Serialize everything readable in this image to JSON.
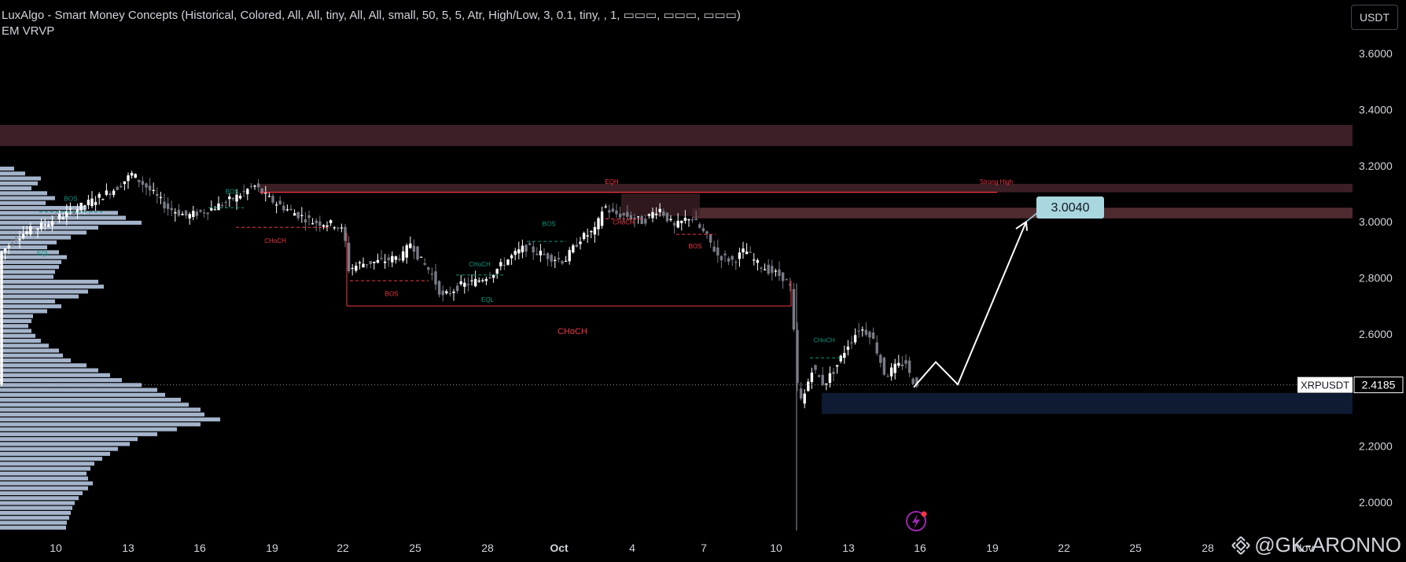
{
  "header": {
    "indicator_line1": "LuxAlgo - Smart Money Concepts (Historical, Colored, All, All, tiny, All, All, small, 50, 5, 5, Atr, High/Low, 3, 0.1, tiny, , 1, ▭▭▭, ▭▭▭, ▭▭▭)",
    "indicator_line2": "EM VRVP",
    "currency_button": "USDT"
  },
  "price_axis": {
    "ticks": [
      "3.6000",
      "3.4000",
      "3.2000",
      "3.0000",
      "2.8000",
      "2.6000",
      "2.2000",
      "2.0000"
    ],
    "tick_values": [
      3.6,
      3.4,
      3.2,
      3.0,
      2.8,
      2.6,
      2.2,
      2.0
    ]
  },
  "time_axis": {
    "labels": [
      "10",
      "13",
      "16",
      "19",
      "22",
      "25",
      "28",
      "Oct",
      "4",
      "7",
      "10",
      "13",
      "16",
      "19",
      "22",
      "25",
      "28",
      "Nov"
    ]
  },
  "symbol_tag": {
    "symbol": "XRPUSDT",
    "price": "2.4185",
    "price_value": 2.4185
  },
  "target_tag": {
    "price": "3.0040",
    "price_value": 3.004
  },
  "annotations": {
    "bos": "BOS",
    "choch": "CHoCH",
    "eqh": "EQH",
    "eql": "EQL",
    "strong_high": "Strong High"
  },
  "watermark": {
    "text": "@GK-ARONNO"
  },
  "colors": {
    "background": "#000000",
    "bull_candle": "#ffffff",
    "bear_candle": "#787b86",
    "supply_zone": "#3b1f24",
    "demand_zone": "#0f1b33",
    "bearish_label": "#f23645",
    "bullish_label": "#089981",
    "target_tag_bg": "#a9d7df",
    "volume_profile": "#b2c3dc"
  }
}
